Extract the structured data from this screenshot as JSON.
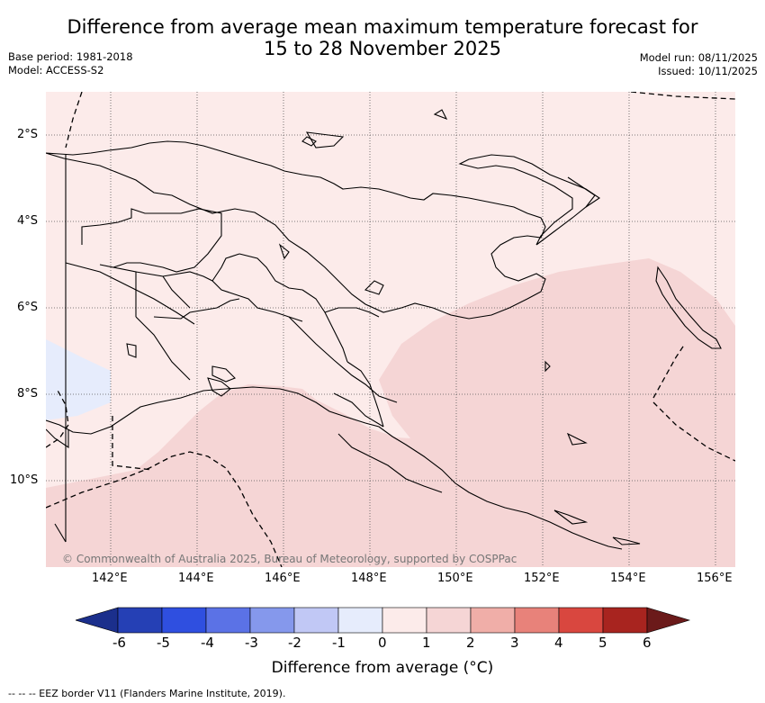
{
  "header": {
    "title_line1": "Difference from average mean maximum temperature forecast for",
    "title_line2": "15 to 28 November 2025",
    "base_period": "Base period: 1981-2018",
    "model": "Model: ACCESS-S2",
    "model_run": "Model run: 08/11/2025",
    "issued": "Issued: 10/11/2025"
  },
  "map": {
    "latitude_labels": [
      "2°S",
      "4°S",
      "6°S",
      "8°S",
      "10°S"
    ],
    "longitude_labels": [
      "142°E",
      "144°E",
      "146°E",
      "148°E",
      "150°E",
      "152°E",
      "154°E",
      "156°E"
    ],
    "copyright": "© Commonwealth of Australia 2025, Bureau of Meteorology, supported by COSPPac",
    "region_colors": {
      "minus_1_to_0": "#e6ecfc",
      "0_to_1": "#fcebea",
      "1_to_2": "#f5d5d5"
    }
  },
  "colorbar": {
    "ticks": [
      "-6",
      "-5",
      "-4",
      "-3",
      "-2",
      "-1",
      "0",
      "1",
      "2",
      "3",
      "4",
      "5",
      "6"
    ],
    "colors": [
      "#1b2f8c",
      "#2540b5",
      "#2f4fe0",
      "#5b72e6",
      "#8598ec",
      "#c1c8f5",
      "#e6ecfc",
      "#fcebea",
      "#f5d5d5",
      "#f0aea8",
      "#e8827a",
      "#d9473f",
      "#a8241f",
      "#6b1a1a"
    ],
    "title": "Difference from average (°C)"
  },
  "footnote": {
    "text": "-- -- -- EEZ border V11 (Flanders Marine Institute, 2019)."
  }
}
